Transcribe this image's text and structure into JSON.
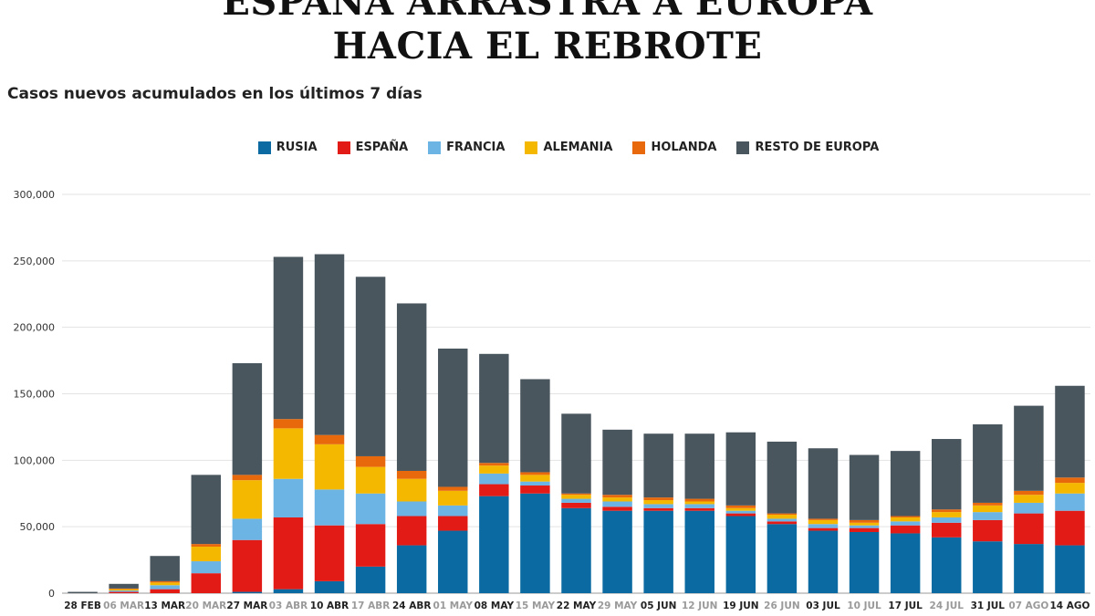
{
  "header": {
    "title_line1": "ESPAÑA ARRASTRA A EUROPA",
    "title_line2": "HACIA EL REBROTE",
    "subtitle": "Casos nuevos acumulados en los últimos 7 días"
  },
  "chart_data": {
    "type": "bar",
    "stacked": true,
    "title": "ESPAÑA ARRASTRA A EUROPA HACIA EL REBROTE",
    "subtitle": "Casos nuevos acumulados en los últimos 7 días",
    "xlabel": "",
    "ylabel": "",
    "ylim": [
      0,
      300000
    ],
    "yticks": [
      0,
      50000,
      100000,
      150000,
      200000,
      250000,
      300000
    ],
    "ytick_labels": [
      "0",
      "50,000",
      "100,000",
      "150,000",
      "200,000",
      "250,000",
      "300,000"
    ],
    "grid": true,
    "legend_position": "top-center",
    "categories": [
      "28 FEB",
      "06 MAR",
      "13 MAR",
      "20 MAR",
      "27 MAR",
      "03 ABR",
      "10 ABR",
      "17 ABR",
      "24 ABR",
      "01 MAY",
      "08 MAY",
      "15 MAY",
      "22 MAY",
      "29 MAY",
      "05 JUN",
      "12 JUN",
      "19 JUN",
      "26 JUN",
      "03 JUL",
      "10 JUL",
      "17 JUL",
      "24 JUL",
      "31 JUL",
      "07 AGO",
      "14 AGO"
    ],
    "category_emphasis": [
      true,
      false,
      true,
      false,
      true,
      false,
      true,
      false,
      true,
      false,
      true,
      false,
      true,
      false,
      true,
      false,
      true,
      false,
      true,
      false,
      true,
      false,
      true,
      false,
      true
    ],
    "series": [
      {
        "name": "RUSIA",
        "color": "#0a6aa1",
        "values": [
          0,
          0,
          0,
          0,
          1000,
          3000,
          9000,
          20000,
          36000,
          47000,
          73000,
          75000,
          64000,
          62000,
          62000,
          62000,
          58000,
          52000,
          47000,
          46000,
          45000,
          42000,
          39000,
          37000,
          36000
        ]
      },
      {
        "name": "ESPAÑA",
        "color": "#e31b17",
        "values": [
          0,
          1000,
          3000,
          15000,
          39000,
          54000,
          42000,
          32000,
          22000,
          11000,
          9000,
          6000,
          4000,
          3000,
          2000,
          2000,
          2000,
          2000,
          2000,
          3000,
          6000,
          11000,
          16000,
          23000,
          26000
        ]
      },
      {
        "name": "FRANCIA",
        "color": "#6cb4e4",
        "values": [
          0,
          1000,
          3000,
          9000,
          16000,
          29000,
          27000,
          23000,
          11000,
          8000,
          8000,
          3000,
          3000,
          4000,
          3000,
          3000,
          2000,
          2000,
          3000,
          2000,
          3000,
          4000,
          6000,
          8000,
          13000
        ]
      },
      {
        "name": "ALEMANIA",
        "color": "#f5b800",
        "values": [
          0,
          1000,
          2000,
          11000,
          29000,
          38000,
          34000,
          20000,
          17000,
          11000,
          6000,
          5000,
          3000,
          3000,
          3000,
          2000,
          2000,
          3000,
          3000,
          2000,
          3000,
          4000,
          5000,
          6000,
          8000
        ]
      },
      {
        "name": "HOLANDA",
        "color": "#e8690c",
        "values": [
          0,
          500,
          1000,
          2000,
          4000,
          7000,
          7000,
          8000,
          6000,
          3000,
          2000,
          2000,
          1000,
          2000,
          2000,
          2000,
          2000,
          1000,
          1000,
          2000,
          1000,
          2000,
          2000,
          3000,
          4000
        ]
      },
      {
        "name": "RESTO DE EUROPA",
        "color": "#4a565e",
        "values": [
          1000,
          3500,
          19000,
          52000,
          84000,
          122000,
          136000,
          135000,
          126000,
          104000,
          82000,
          70000,
          60000,
          49000,
          48000,
          49000,
          55000,
          54000,
          53000,
          49000,
          49000,
          53000,
          59000,
          64000,
          69000
        ]
      }
    ]
  }
}
